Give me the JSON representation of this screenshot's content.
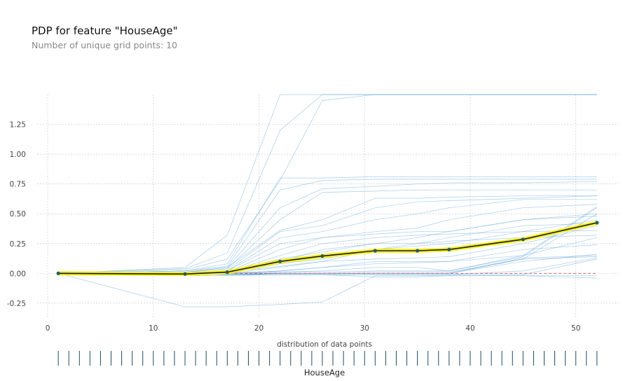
{
  "title": "PDP for feature \"HouseAge\"",
  "subtitle": "Number of unique grid points: 10",
  "chart_data": {
    "type": "line",
    "xlim": [
      -1,
      54
    ],
    "ylim": [
      -0.38,
      1.5
    ],
    "xticks": [
      0,
      10,
      20,
      30,
      40,
      50
    ],
    "yticks": [
      -0.25,
      0.0,
      0.25,
      0.5,
      0.75,
      1.0,
      1.25
    ],
    "grid": true,
    "x": [
      1,
      13,
      17,
      22,
      26,
      31,
      35,
      38,
      45,
      52
    ],
    "pdp": [
      0.0,
      -0.005,
      0.01,
      0.1,
      0.145,
      0.19,
      0.19,
      0.2,
      0.285,
      0.425
    ],
    "ice_lines": [
      [
        0.0,
        0.05,
        0.32,
        1.5,
        1.5,
        1.5,
        1.5,
        1.5,
        1.5,
        1.5
      ],
      [
        0.0,
        0.04,
        0.17,
        1.2,
        1.5,
        1.5,
        1.5,
        1.5,
        1.5,
        1.5
      ],
      [
        0.0,
        0.03,
        0.12,
        0.78,
        1.45,
        1.5,
        1.5,
        1.5,
        1.5,
        1.5
      ],
      [
        0.0,
        0.02,
        0.08,
        0.8,
        0.8,
        0.81,
        0.81,
        0.81,
        0.81,
        0.81
      ],
      [
        0.0,
        0.02,
        0.06,
        0.7,
        0.78,
        0.79,
        0.79,
        0.79,
        0.79,
        0.79
      ],
      [
        0.0,
        0.01,
        0.05,
        0.55,
        0.71,
        0.73,
        0.75,
        0.76,
        0.76,
        0.77
      ],
      [
        0.0,
        0.01,
        0.04,
        0.45,
        0.68,
        0.69,
        0.7,
        0.7,
        0.7,
        0.7
      ],
      [
        0.0,
        0.01,
        0.05,
        0.36,
        0.45,
        0.63,
        0.63,
        0.64,
        0.65,
        0.65
      ],
      [
        0.0,
        0.0,
        0.03,
        0.35,
        0.4,
        0.55,
        0.6,
        0.61,
        0.63,
        0.65
      ],
      [
        0.0,
        0.0,
        0.02,
        0.3,
        0.35,
        0.45,
        0.5,
        0.55,
        0.62,
        0.62
      ],
      [
        0.0,
        0.0,
        0.02,
        0.25,
        0.3,
        0.35,
        0.38,
        0.45,
        0.55,
        0.58
      ],
      [
        0.0,
        0.0,
        0.01,
        0.2,
        0.3,
        0.33,
        0.35,
        0.35,
        0.45,
        0.5
      ],
      [
        0.0,
        0.0,
        0.01,
        0.15,
        0.25,
        0.3,
        0.32,
        0.33,
        0.35,
        0.36
      ],
      [
        0.0,
        0.0,
        0.0,
        0.1,
        0.2,
        0.25,
        0.25,
        0.27,
        0.3,
        0.32
      ],
      [
        0.0,
        0.0,
        0.0,
        0.08,
        0.12,
        0.2,
        0.23,
        0.25,
        0.35,
        0.45
      ],
      [
        0.0,
        0.0,
        0.0,
        0.05,
        0.1,
        0.12,
        0.13,
        0.14,
        0.25,
        0.4
      ],
      [
        0.0,
        -0.01,
        0.0,
        0.02,
        0.05,
        0.1,
        0.1,
        0.1,
        0.15,
        0.3
      ],
      [
        0.0,
        -0.01,
        0.0,
        0.01,
        0.02,
        0.05,
        0.05,
        0.02,
        0.15,
        0.56
      ],
      [
        0.0,
        -0.01,
        0.0,
        0.01,
        0.01,
        0.02,
        0.02,
        0.02,
        0.14,
        0.55
      ],
      [
        0.0,
        -0.01,
        -0.01,
        0.0,
        0.0,
        0.01,
        0.01,
        0.01,
        0.12,
        0.5
      ],
      [
        0.0,
        -0.01,
        -0.01,
        0.0,
        0.0,
        0.0,
        0.0,
        0.0,
        0.13,
        0.15
      ],
      [
        0.0,
        -0.01,
        -0.01,
        0.0,
        0.0,
        0.0,
        0.0,
        0.0,
        0.12,
        0.14
      ],
      [
        0.0,
        -0.01,
        -0.01,
        0.0,
        0.0,
        0.0,
        0.0,
        0.0,
        0.1,
        0.16
      ],
      [
        0.0,
        -0.01,
        -0.01,
        -0.01,
        -0.01,
        -0.01,
        -0.01,
        -0.01,
        0.02,
        0.13
      ],
      [
        0.0,
        -0.01,
        -0.01,
        -0.01,
        -0.01,
        -0.01,
        -0.01,
        -0.01,
        -0.01,
        0.12
      ],
      [
        0.0,
        -0.02,
        -0.02,
        -0.01,
        -0.01,
        -0.03,
        -0.03,
        -0.02,
        -0.02,
        -0.04
      ],
      [
        0.0,
        -0.28,
        -0.28,
        -0.26,
        -0.24,
        -0.02,
        -0.02,
        -0.02,
        -0.02,
        -0.02
      ],
      [
        0.0,
        0.0,
        0.0,
        0.02,
        0.05,
        0.08,
        0.09,
        0.1,
        0.2,
        0.24
      ],
      [
        0.0,
        0.0,
        0.01,
        0.06,
        0.1,
        0.2,
        0.25,
        0.3,
        0.4,
        0.42
      ],
      [
        0.0,
        0.0,
        0.02,
        0.12,
        0.18,
        0.25,
        0.3,
        0.35,
        0.45,
        0.48
      ]
    ],
    "xlabel": "HouseAge",
    "distribution_caption": "distribution of data points",
    "distribution_x": [
      1,
      2,
      3,
      4,
      5,
      6,
      7,
      8,
      9,
      10,
      11,
      12,
      13,
      14,
      15,
      16,
      17,
      18,
      19,
      20,
      21,
      22,
      23,
      24,
      25,
      26,
      27,
      28,
      29,
      30,
      31,
      32,
      33,
      34,
      35,
      36,
      37,
      38,
      39,
      40,
      41,
      42,
      43,
      44,
      45,
      46,
      47,
      48,
      49,
      50,
      51,
      52
    ],
    "colors": {
      "ice": "#3a8fd1",
      "pdp_highlight": "#f5f02a",
      "pdp_line": "#1a1a1a",
      "pdp_marker": "#2a5a5a",
      "zero_line": "#d9534f",
      "grid": "#cccccc",
      "rug": "#1e4d5c"
    }
  }
}
